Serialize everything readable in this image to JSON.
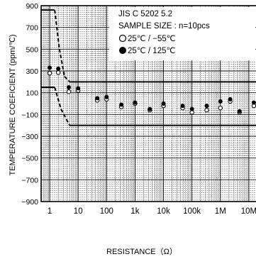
{
  "chart_data": {
    "type": "scatter",
    "xlabel": "RESISTANCE（Ω）",
    "ylabel": "TEMPERATURE COEFICIENT (ppm/℃)",
    "x_scale": "log",
    "x_unit": "Ω",
    "xlim": [
      0.5,
      20000000
    ],
    "ylim": [
      -900,
      900
    ],
    "x_tick_labels": [
      "1",
      "10",
      "100",
      "1k",
      "10k",
      "100k",
      "1M",
      "10M"
    ],
    "x_tick_values": [
      1,
      10,
      100,
      1000,
      10000,
      100000,
      1000000,
      10000000
    ],
    "y_ticks": [
      900,
      700,
      500,
      300,
      100,
      -100,
      -300,
      -500,
      -700,
      -900
    ],
    "y_tick_labels": [
      "900",
      "700",
      "500",
      "300",
      "100",
      "−100",
      "−300",
      "−500",
      "−700",
      "−900"
    ],
    "grid": true,
    "legend_position": "top-right",
    "annotation_lines": [
      "JIS C 5202 5.2",
      "SAMPLE SIZE : n=10pcs"
    ],
    "series": [
      {
        "name": "25℃ / −55℃",
        "marker": "open-circle",
        "points": [
          {
            "x": 1,
            "y": 280
          },
          {
            "x": 2,
            "y": 285
          },
          {
            "x": 4.7,
            "y": 110
          },
          {
            "x": 10,
            "y": 120
          },
          {
            "x": 47,
            "y": 30
          },
          {
            "x": 100,
            "y": 40
          },
          {
            "x": 330,
            "y": -30
          },
          {
            "x": 1000,
            "y": 0
          },
          {
            "x": 3300,
            "y": -60
          },
          {
            "x": 10000,
            "y": -20
          },
          {
            "x": 47000,
            "y": -40
          },
          {
            "x": 100000,
            "y": -80
          },
          {
            "x": 330000,
            "y": -60
          },
          {
            "x": 1000000,
            "y": -40
          },
          {
            "x": 2200000,
            "y": 20
          },
          {
            "x": 4700000,
            "y": -80
          },
          {
            "x": 15000000,
            "y": -20
          }
        ]
      },
      {
        "name": "25℃ / 125℃",
        "marker": "filled-circle",
        "points": [
          {
            "x": 1,
            "y": 330
          },
          {
            "x": 2,
            "y": 320
          },
          {
            "x": 4.7,
            "y": 150
          },
          {
            "x": 10,
            "y": 140
          },
          {
            "x": 47,
            "y": 50
          },
          {
            "x": 100,
            "y": 60
          },
          {
            "x": 330,
            "y": -10
          },
          {
            "x": 1000,
            "y": 10
          },
          {
            "x": 3300,
            "y": -50
          },
          {
            "x": 10000,
            "y": 0
          },
          {
            "x": 47000,
            "y": -20
          },
          {
            "x": 100000,
            "y": -50
          },
          {
            "x": 330000,
            "y": -20
          },
          {
            "x": 1000000,
            "y": 20
          },
          {
            "x": 2200000,
            "y": 40
          },
          {
            "x": 4700000,
            "y": -70
          },
          {
            "x": 15000000,
            "y": 10
          }
        ]
      }
    ],
    "limit_lines": [
      {
        "label": "upper-limit",
        "points": [
          [
            0.5,
            860
          ],
          [
            1.5,
            860
          ],
          [
            2.2,
            500
          ],
          [
            3.3,
            250
          ],
          [
            5,
            200
          ],
          [
            20000000,
            200
          ]
        ]
      },
      {
        "label": "lower-limit",
        "points": [
          [
            0.5,
            150
          ],
          [
            1.5,
            150
          ],
          [
            2.5,
            -50
          ],
          [
            5,
            -200
          ],
          [
            20000000,
            -200
          ]
        ]
      }
    ],
    "colors": {
      "marks": "#000000",
      "grid": "#000000",
      "background": "#ffffff"
    }
  }
}
